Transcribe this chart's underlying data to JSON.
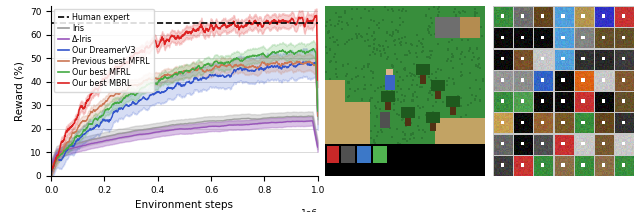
{
  "xlabel": "Environment steps",
  "ylabel": "Reward (%)",
  "xlim": [
    0,
    1.0
  ],
  "ylim": [
    0,
    72
  ],
  "xticks": [
    0.0,
    0.2,
    0.4,
    0.6,
    0.8,
    1.0
  ],
  "yticks": [
    0,
    10,
    20,
    30,
    40,
    50,
    60,
    70
  ],
  "human_expert_level": 65.0,
  "iris_color": "#999999",
  "delta_iris_color": "#9955bb",
  "dreamer_color": "#3355cc",
  "prev_mfrl_color": "#cc7755",
  "best_mfrl_color": "#44aa44",
  "best_mbrl_color": "#dd2222",
  "background_color": "#ffffff",
  "grid_color": "#cccccc",
  "legend_labels": [
    "Human expert",
    "Iris",
    "Δ-Iris",
    "Our DreamerV3",
    "Previous best MFRL",
    "Our best MFRL",
    "Our best MBRL"
  ]
}
